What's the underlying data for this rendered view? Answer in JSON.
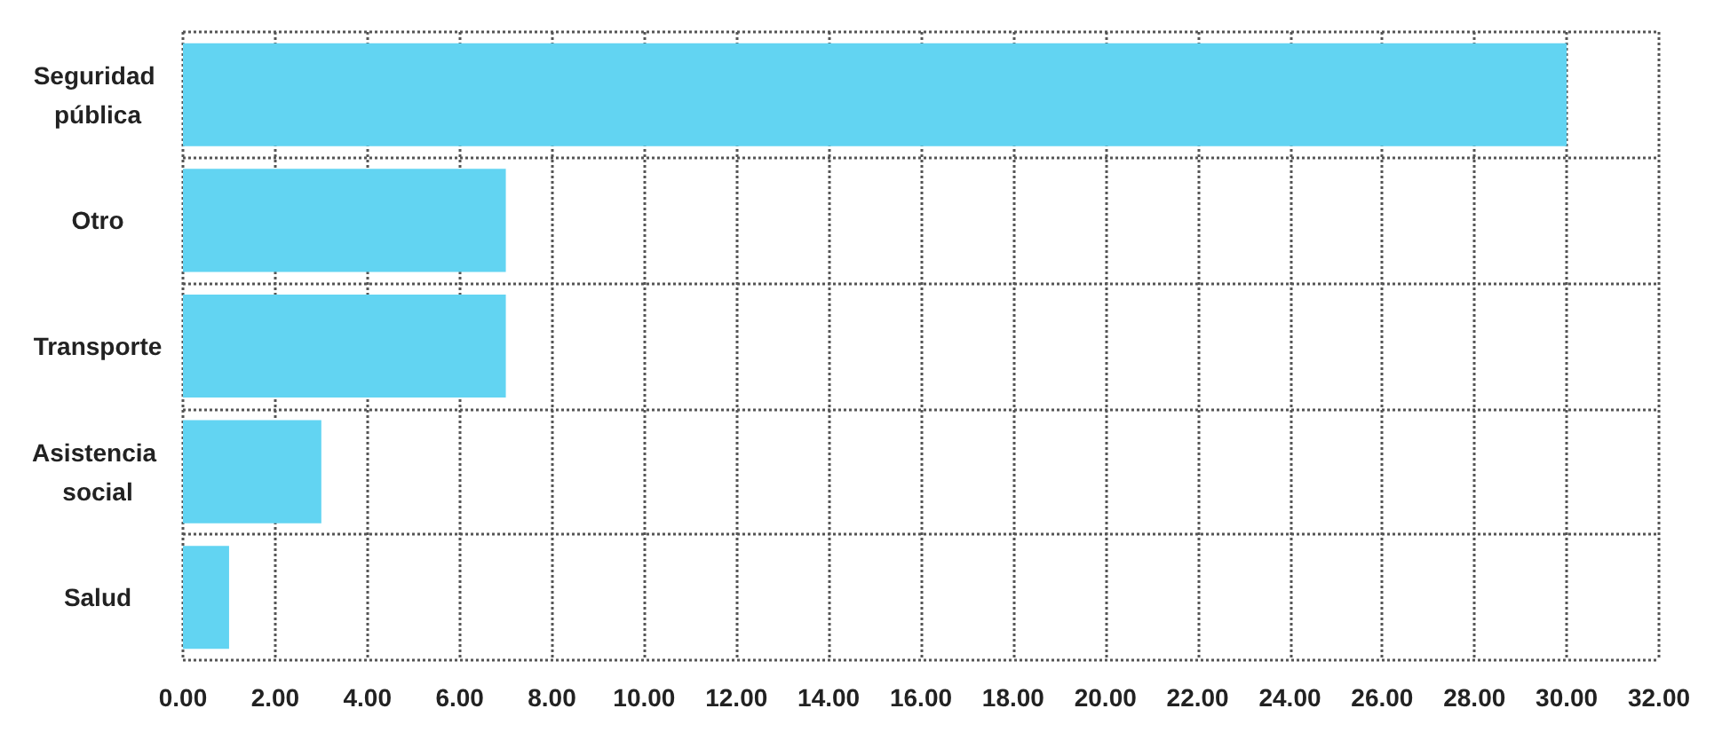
{
  "chart_data": {
    "type": "bar",
    "orientation": "horizontal",
    "categories": [
      "Seguridad pública",
      "Otro",
      "Transporte",
      "Asistencia social",
      "Salud"
    ],
    "values": [
      30,
      7,
      7,
      3,
      1
    ],
    "color": "#62d4f2",
    "xlim": [
      0,
      32
    ],
    "xticks": [
      {
        "value": 0,
        "label": "0.00"
      },
      {
        "value": 2,
        "label": "2.00"
      },
      {
        "value": 4,
        "label": "4.00"
      },
      {
        "value": 6,
        "label": "6.00"
      },
      {
        "value": 8,
        "label": "8.00"
      },
      {
        "value": 10,
        "label": "10.00"
      },
      {
        "value": 12,
        "label": "12.00"
      },
      {
        "value": 14,
        "label": "14.00"
      },
      {
        "value": 16,
        "label": "16.00"
      },
      {
        "value": 18,
        "label": "18.00"
      },
      {
        "value": 20,
        "label": "20.00"
      },
      {
        "value": 22,
        "label": "22.00"
      },
      {
        "value": 24,
        "label": "24.00"
      },
      {
        "value": 26,
        "label": "26.00"
      },
      {
        "value": 28,
        "label": "28.00"
      },
      {
        "value": 30,
        "label": "30.00"
      },
      {
        "value": 32,
        "label": "32.00"
      }
    ],
    "grid": true
  }
}
